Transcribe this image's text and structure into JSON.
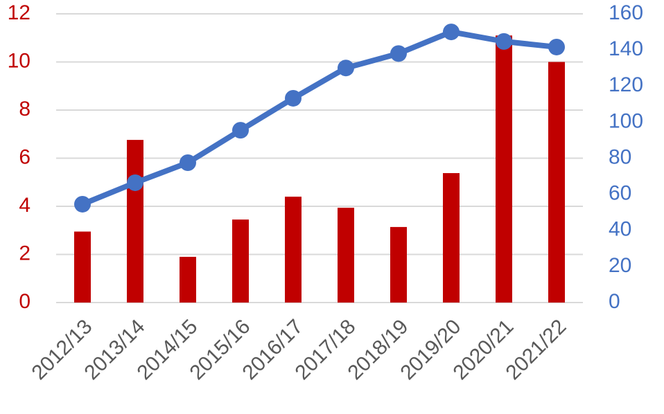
{
  "chart_data": {
    "type": "bar-line",
    "categories": [
      "2012/13",
      "2013/14",
      "2014/15",
      "2015/16",
      "2016/17",
      "2017/18",
      "2018/19",
      "2019/20",
      "2020/21",
      "2021/22"
    ],
    "series": [
      {
        "type": "bar",
        "color": "#c00000",
        "values": [
          2.95,
          6.76,
          1.9,
          3.45,
          4.4,
          3.94,
          3.14,
          5.38,
          11.1,
          10.0
        ]
      },
      {
        "type": "line",
        "axis": "y2",
        "color": "#4472c4",
        "values": [
          54.5,
          66.4,
          77.5,
          95.5,
          113.2,
          130,
          138,
          150,
          144.7,
          141.6
        ]
      }
    ],
    "ylim": [
      0,
      12
    ],
    "yticks": [
      0,
      2,
      4,
      6,
      8,
      10,
      12
    ],
    "ytick_color": "#c00000",
    "y2lim": [
      0,
      160
    ],
    "y2ticks": [
      0,
      20,
      40,
      60,
      80,
      100,
      120,
      140,
      160
    ],
    "y2tick_color": "#4472c4",
    "grid": true
  }
}
